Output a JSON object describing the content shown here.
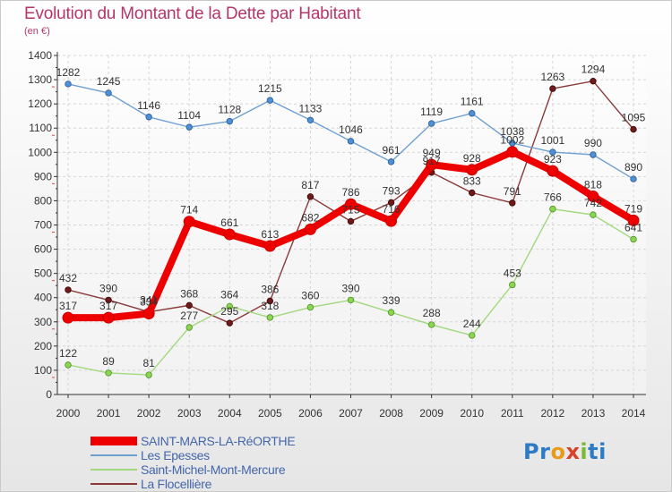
{
  "header": {
    "title": "Evolution du Montant de la Dette par Habitant",
    "subtitle": "(en €)"
  },
  "logo": {
    "text": "Proxiti"
  },
  "colors": {
    "title": "#b5366b",
    "legend_text": "#4466aa",
    "axis": "#333333",
    "grid": "#d5d5d5"
  },
  "chart_data": {
    "type": "line",
    "title": "Evolution du Montant de la Dette par Habitant",
    "subtitle": "(en €)",
    "xlabel": "",
    "ylabel": "",
    "ylim": [
      0,
      1400
    ],
    "yticks": [
      0,
      100,
      200,
      300,
      400,
      500,
      600,
      700,
      800,
      900,
      1000,
      1100,
      1200,
      1300,
      1400
    ],
    "grid": true,
    "legend_position": "bottom-left",
    "x": [
      "2000",
      "2001",
      "2002",
      "2003",
      "2004",
      "2005",
      "2006",
      "2007",
      "2008",
      "2009",
      "2010",
      "2011",
      "2012",
      "2013",
      "2014"
    ],
    "series": [
      {
        "name": "SAINT-MARS-LA-RéORTHE",
        "color": "#ee0000",
        "marker_color": "#ee0000",
        "marker_edge": "#cc0000",
        "values": [
          317,
          317,
          334,
          714,
          661,
          613,
          682,
          786,
          716,
          949,
          928,
          1002,
          923,
          818,
          719
        ]
      },
      {
        "name": "Les Epesses",
        "color": "#6f9fd1",
        "marker_color": "#4f8fd6",
        "marker_edge": "#2a5c95",
        "values": [
          1282,
          1245,
          1146,
          1104,
          1128,
          1215,
          1133,
          1046,
          961,
          1119,
          1161,
          1038,
          1001,
          990,
          890
        ]
      },
      {
        "name": "Saint-Michel-Mont-Mercure",
        "color": "#a2d97f",
        "marker_color": "#8bd64e",
        "marker_edge": "#4f8f2a",
        "values": [
          122,
          89,
          81,
          277,
          364,
          318,
          360,
          390,
          339,
          288,
          244,
          453,
          766,
          742,
          641
        ]
      },
      {
        "name": "La Flocellière",
        "color": "#8b3a3a",
        "marker_color": "#6e1a1a",
        "marker_edge": "#3f0808",
        "values": [
          432,
          390,
          341,
          368,
          295,
          386,
          817,
          715,
          793,
          917,
          833,
          791,
          1263,
          1294,
          1095
        ]
      }
    ]
  }
}
